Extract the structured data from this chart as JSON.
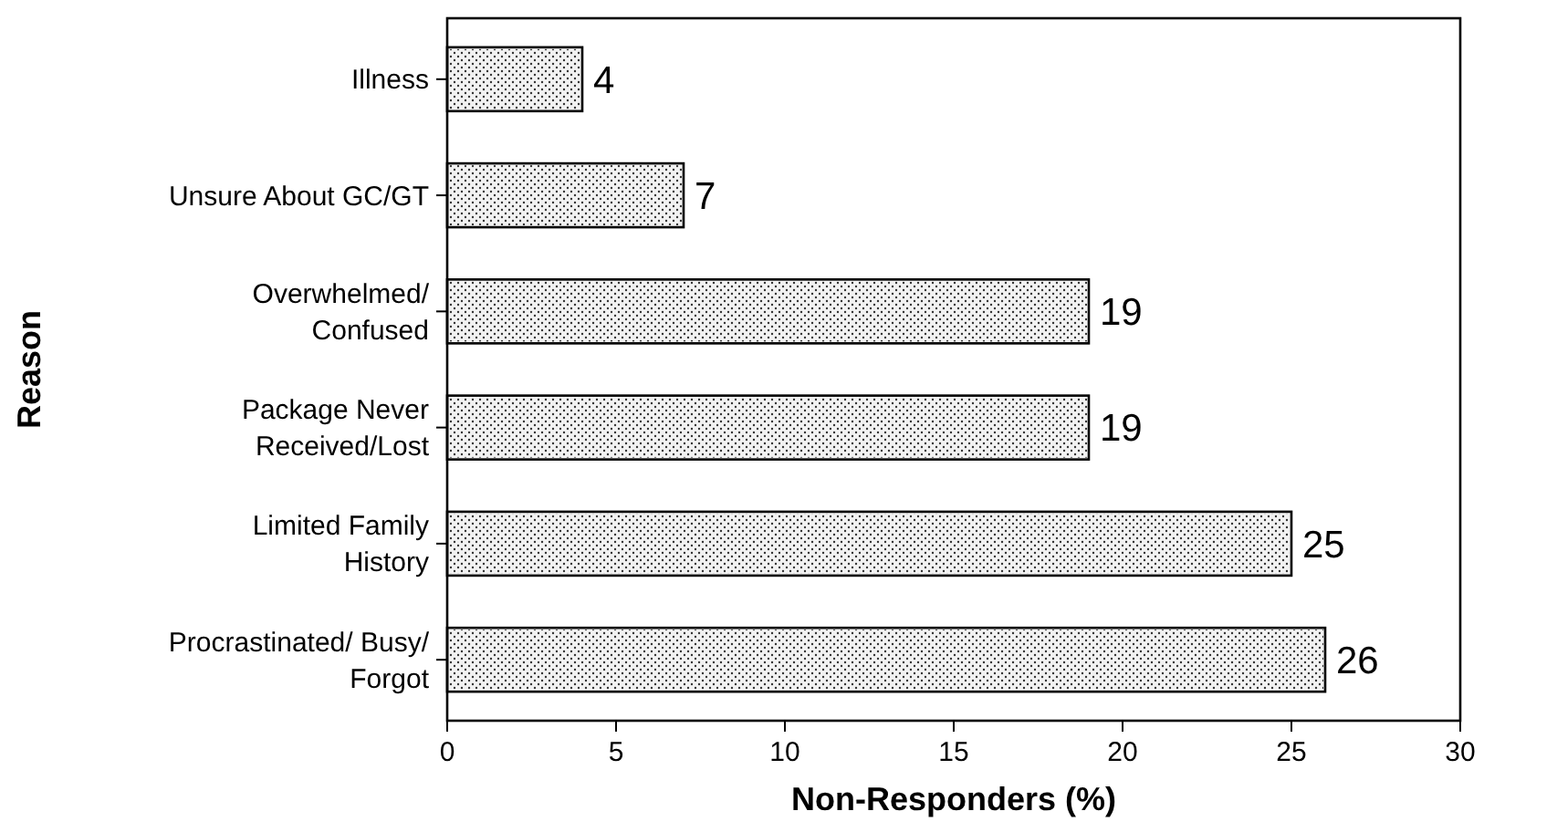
{
  "chart_data": {
    "type": "bar",
    "orientation": "horizontal",
    "xlabel": "Non-Responders (%)",
    "ylabel": "Reason",
    "categories": [
      "Illness",
      "Unsure About GC/GT",
      "Overwhelmed/\nConfused",
      "Package Never\nReceived/Lost",
      "Limited Family\nHistory",
      "Procrastinated/ Busy/\nForgot"
    ],
    "values": [
      4,
      7,
      19,
      19,
      25,
      26
    ],
    "color": "#f2f2f2",
    "xlim": [
      0,
      30
    ],
    "xticks": [
      0,
      5,
      10,
      15,
      20,
      25,
      30
    ],
    "data_labels": true,
    "grid": false
  }
}
